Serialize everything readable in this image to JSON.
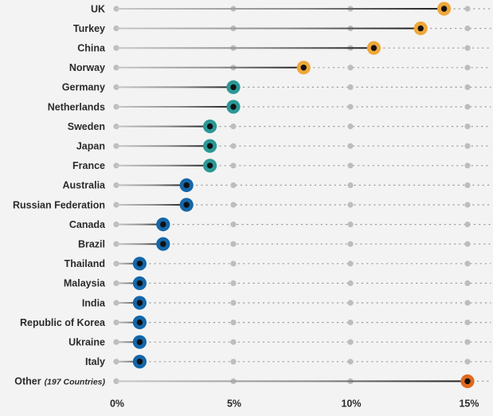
{
  "chart_data": {
    "type": "dot-plot",
    "title": "",
    "xlabel": "",
    "ylabel": "",
    "xlim": [
      0,
      15
    ],
    "x_ticks": [
      {
        "value": 0,
        "label": "0%"
      },
      {
        "value": 5,
        "label": "5%"
      },
      {
        "value": 10,
        "label": "10%"
      },
      {
        "value": 15,
        "label": "15%"
      }
    ],
    "grid": "dotted horizontal guide per row, gray dots at 0/5/10/15",
    "categories": [
      {
        "label": "UK",
        "note": "",
        "value": 14,
        "color": "#eea73a"
      },
      {
        "label": "Turkey",
        "note": "",
        "value": 13,
        "color": "#eea73a"
      },
      {
        "label": "China",
        "note": "",
        "value": 11,
        "color": "#eea73a"
      },
      {
        "label": "Norway",
        "note": "",
        "value": 8,
        "color": "#eea73a"
      },
      {
        "label": "Germany",
        "note": "",
        "value": 5,
        "color": "#2b9896"
      },
      {
        "label": "Netherlands",
        "note": "",
        "value": 5,
        "color": "#2b9896"
      },
      {
        "label": "Sweden",
        "note": "",
        "value": 4,
        "color": "#2b9896"
      },
      {
        "label": "Japan",
        "note": "",
        "value": 4,
        "color": "#2b9896"
      },
      {
        "label": "France",
        "note": "",
        "value": 4,
        "color": "#2b9896"
      },
      {
        "label": "Australia",
        "note": "",
        "value": 3,
        "color": "#1466a8"
      },
      {
        "label": "Russian Federation",
        "note": "",
        "value": 3,
        "color": "#1466a8"
      },
      {
        "label": "Canada",
        "note": "",
        "value": 2,
        "color": "#1466a8"
      },
      {
        "label": "Brazil",
        "note": "",
        "value": 2,
        "color": "#1466a8"
      },
      {
        "label": "Thailand",
        "note": "",
        "value": 1,
        "color": "#1466a8"
      },
      {
        "label": "Malaysia",
        "note": "",
        "value": 1,
        "color": "#1466a8"
      },
      {
        "label": "India",
        "note": "",
        "value": 1,
        "color": "#1466a8"
      },
      {
        "label": "Republic of Korea",
        "note": "",
        "value": 1,
        "color": "#1466a8"
      },
      {
        "label": "Ukraine",
        "note": "",
        "value": 1,
        "color": "#1466a8"
      },
      {
        "label": "Italy",
        "note": "",
        "value": 1,
        "color": "#1466a8"
      },
      {
        "label": "Other",
        "note": "(197 Countries)",
        "value": 15,
        "color": "#e0691e"
      }
    ],
    "colors": {
      "gridline": "#b5b5b5",
      "grid_dot": "#bdbdbd",
      "dotted_guide": "#9a9a9a",
      "bar_dark": "#1e1e1e",
      "center_dot": "#111111"
    }
  }
}
